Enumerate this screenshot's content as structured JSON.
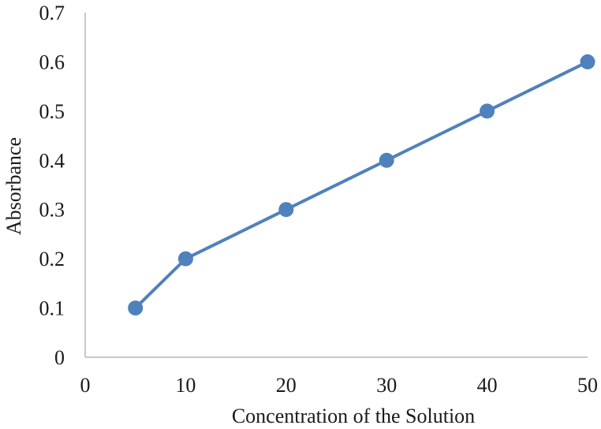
{
  "chart_data": {
    "type": "line",
    "title": "",
    "xlabel": "Concentration of the Solution",
    "ylabel": "Absorbance",
    "x": [
      5,
      10,
      20,
      30,
      40,
      50
    ],
    "series": [
      {
        "name": "Absorbance",
        "values": [
          0.1,
          0.2,
          0.3,
          0.4,
          0.5,
          0.6
        ],
        "color": "#4f81bd"
      }
    ],
    "xlim": [
      0,
      50
    ],
    "ylim": [
      0,
      0.7
    ],
    "xticks": [
      "0",
      "10",
      "20",
      "30",
      "40",
      "50"
    ],
    "yticks": [
      "0",
      "0.1",
      "0.2",
      "0.3",
      "0.4",
      "0.5",
      "0.6",
      "0.7"
    ],
    "grid": false,
    "legend": null,
    "markers": true
  },
  "colors": {
    "series": "#4f81bd",
    "axis": "#c8c8c8"
  }
}
